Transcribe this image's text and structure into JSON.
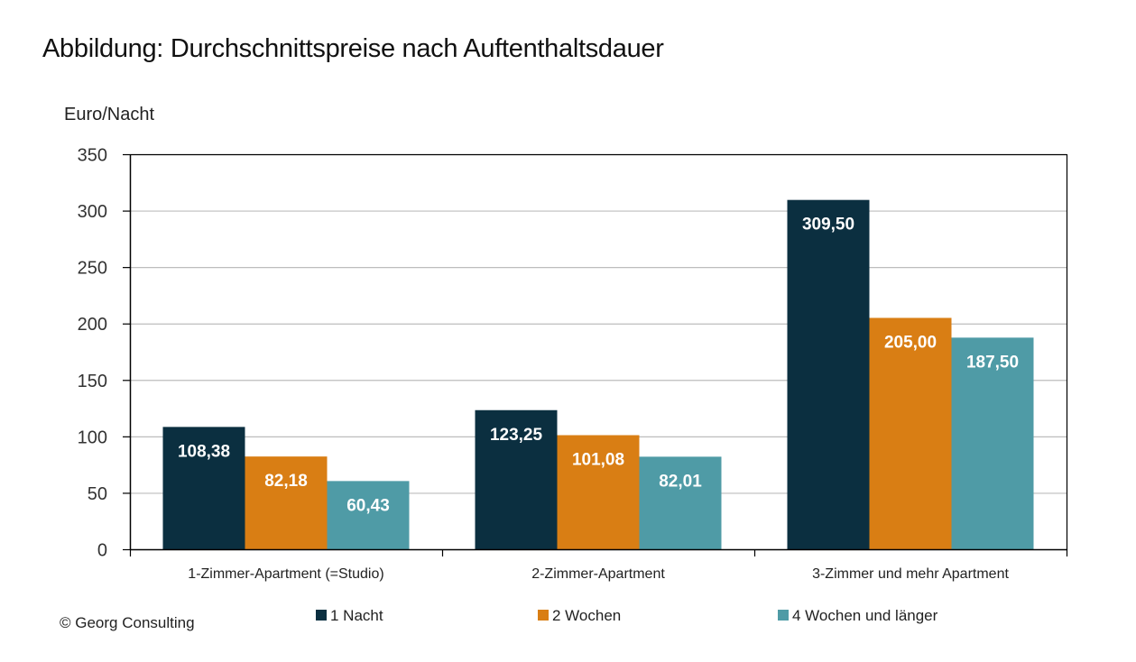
{
  "page": {
    "title": "Abbildung: Durchschnittspreise nach Auftenthaltsdauer",
    "copyright": "© Georg Consulting"
  },
  "chart_data": {
    "type": "bar",
    "title": "Abbildung: Durchschnittspreise nach Auftenthaltsdauer",
    "xlabel": "",
    "ylabel": "Euro/Nacht",
    "ylim": [
      0,
      350
    ],
    "yticks": [
      0,
      50,
      100,
      150,
      200,
      250,
      300,
      350
    ],
    "grid": true,
    "legend_position": "bottom",
    "categories": [
      "1-Zimmer-Apartment (=Studio)",
      "2-Zimmer-Apartment",
      "3-Zimmer und mehr Apartment"
    ],
    "series": [
      {
        "name": "1 Nacht",
        "color": "#0b2f40",
        "values": [
          108.38,
          123.25,
          309.5
        ],
        "labels": [
          "108,38",
          "123,25",
          "309,50"
        ]
      },
      {
        "name": "2 Wochen",
        "color": "#d97e14",
        "values": [
          82.18,
          101.08,
          205.0
        ],
        "labels": [
          "82,18",
          "101,08",
          "205,00"
        ]
      },
      {
        "name": "4 Wochen und länger",
        "color": "#4f9ba6",
        "values": [
          60.43,
          82.01,
          187.5
        ],
        "labels": [
          "60,43",
          "82,01",
          "187,50"
        ]
      }
    ]
  }
}
